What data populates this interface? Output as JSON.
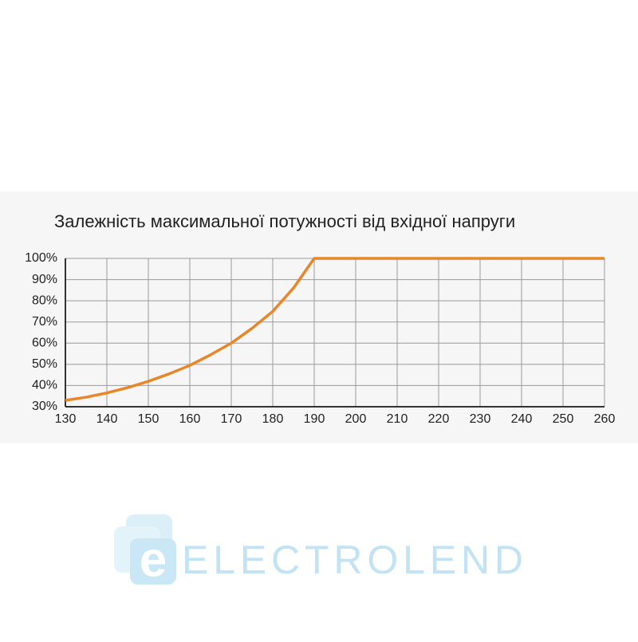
{
  "chart_data": {
    "type": "line",
    "title": "Залежність максимальної потужності від вхідної напруги",
    "x": [
      130,
      135,
      140,
      145,
      150,
      155,
      160,
      165,
      170,
      175,
      180,
      185,
      190,
      200,
      210,
      220,
      230,
      240,
      250,
      260
    ],
    "series": [
      {
        "color": "#e8862a",
        "values": [
          33,
          34.5,
          36.5,
          39,
          42,
          45.5,
          49.5,
          54.5,
          60,
          67,
          75,
          86,
          100,
          100,
          100,
          100,
          100,
          100,
          100,
          100
        ]
      }
    ],
    "xlim": [
      130,
      260
    ],
    "xticks": [
      130,
      140,
      150,
      160,
      170,
      180,
      190,
      200,
      210,
      220,
      230,
      240,
      250,
      260
    ],
    "ylim": [
      30,
      100
    ],
    "yticks": [
      {
        "value": 30,
        "label": "30%"
      },
      {
        "value": 40,
        "label": "40%"
      },
      {
        "value": 50,
        "label": "50%"
      },
      {
        "value": 60,
        "label": "60%"
      },
      {
        "value": 70,
        "label": "70%"
      },
      {
        "value": 80,
        "label": "80%"
      },
      {
        "value": 90,
        "label": "90%"
      },
      {
        "value": 100,
        "label": "100%"
      }
    ],
    "grid": true
  },
  "watermark": {
    "letter": "e",
    "text": "ELECTROLEND"
  }
}
